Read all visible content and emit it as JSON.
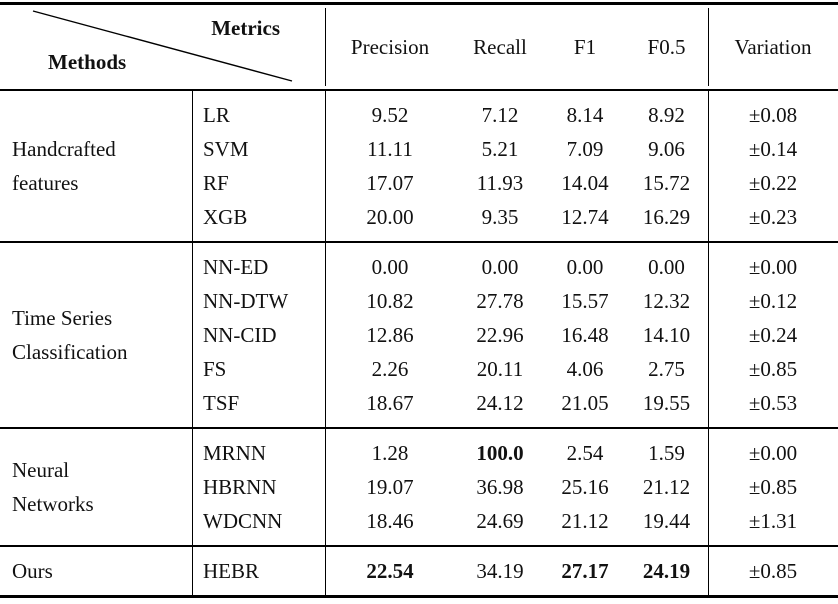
{
  "header": {
    "corner": {
      "metrics": "Metrics",
      "methods": "Methods"
    },
    "columns": [
      "Precision",
      "Recall",
      "F1",
      "F0.5",
      "Variation"
    ]
  },
  "groups": [
    {
      "label_lines": [
        "Handcrafted",
        "features"
      ],
      "rows": [
        {
          "method": "LR",
          "values": [
            "9.52",
            "7.12",
            "8.14",
            "8.92"
          ],
          "variation": "±0.08",
          "bold": []
        },
        {
          "method": "SVM",
          "values": [
            "11.11",
            "5.21",
            "7.09",
            "9.06"
          ],
          "variation": "±0.14",
          "bold": []
        },
        {
          "method": "RF",
          "values": [
            "17.07",
            "11.93",
            "14.04",
            "15.72"
          ],
          "variation": "±0.22",
          "bold": []
        },
        {
          "method": "XGB",
          "values": [
            "20.00",
            "9.35",
            "12.74",
            "16.29"
          ],
          "variation": "±0.23",
          "bold": []
        }
      ]
    },
    {
      "label_lines": [
        "Time Series",
        "Classification"
      ],
      "rows": [
        {
          "method": "NN-ED",
          "values": [
            "0.00",
            "0.00",
            "0.00",
            "0.00"
          ],
          "variation": "±0.00",
          "bold": []
        },
        {
          "method": "NN-DTW",
          "values": [
            "10.82",
            "27.78",
            "15.57",
            "12.32"
          ],
          "variation": "±0.12",
          "bold": []
        },
        {
          "method": "NN-CID",
          "values": [
            "12.86",
            "22.96",
            "16.48",
            "14.10"
          ],
          "variation": "±0.24",
          "bold": []
        },
        {
          "method": "FS",
          "values": [
            "2.26",
            "20.11",
            "4.06",
            "2.75"
          ],
          "variation": "±0.85",
          "bold": []
        },
        {
          "method": "TSF",
          "values": [
            "18.67",
            "24.12",
            "21.05",
            "19.55"
          ],
          "variation": "±0.53",
          "bold": []
        }
      ]
    },
    {
      "label_lines": [
        "Neural",
        "Networks"
      ],
      "rows": [
        {
          "method": "MRNN",
          "values": [
            "1.28",
            "100.0",
            "2.54",
            "1.59"
          ],
          "variation": "±0.00",
          "bold": [
            1
          ]
        },
        {
          "method": "HBRNN",
          "values": [
            "19.07",
            "36.98",
            "25.16",
            "21.12"
          ],
          "variation": "±0.85",
          "bold": []
        },
        {
          "method": "WDCNN",
          "values": [
            "18.46",
            "24.69",
            "21.12",
            "19.44"
          ],
          "variation": "±1.31",
          "bold": []
        }
      ]
    },
    {
      "label_lines": [
        "Ours"
      ],
      "rows": [
        {
          "method": "HEBR",
          "values": [
            "22.54",
            "34.19",
            "27.17",
            "24.19"
          ],
          "variation": "±0.85",
          "bold": [
            0,
            2,
            3
          ]
        }
      ]
    }
  ],
  "colors": {
    "text": "#111111",
    "rule": "#000000",
    "background": "#ffffff"
  }
}
